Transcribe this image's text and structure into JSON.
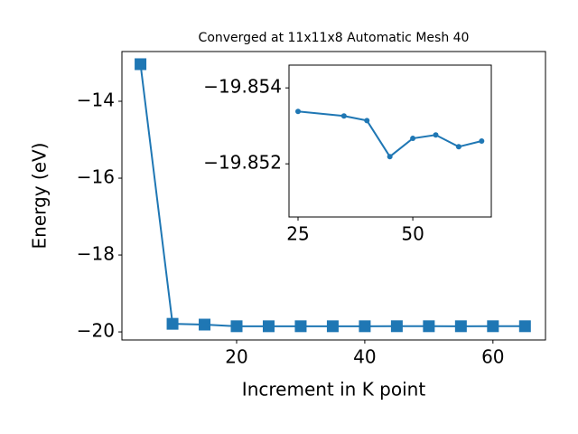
{
  "chart_data": [
    {
      "type": "line",
      "title": "Converged at 11x11x8 Automatic Mesh 40",
      "x_label": "Increment in K point",
      "y_label": "Energy (eV)",
      "marker": "square",
      "series": [
        {
          "color": "#1f77b4",
          "x": [
            5,
            10,
            15,
            20,
            25,
            30,
            35,
            40,
            45,
            50,
            55,
            60,
            65
          ],
          "values": [
            -13.035,
            -19.79,
            -19.81,
            -19.853,
            -19.85338,
            -19.853,
            -19.85326,
            -19.85314,
            -19.85219,
            -19.85267,
            -19.85276,
            -19.85245,
            -19.8526
          ]
        }
      ],
      "xlim": [
        2.1,
        68.2
      ],
      "ylim": [
        -20.21,
        -12.706
      ],
      "xticks": [
        20,
        40,
        60
      ],
      "yticks": [
        {
          "value": -20,
          "label": "−20"
        },
        {
          "value": -18,
          "label": "−18"
        },
        {
          "value": -16,
          "label": "−16"
        },
        {
          "value": -14,
          "label": "−14"
        }
      ]
    },
    {
      "type": "line",
      "marker": "circle",
      "series": [
        {
          "color": "#1f77b4",
          "x": [
            25,
            35,
            40,
            45,
            50,
            55,
            60,
            65
          ],
          "values": [
            -19.85338,
            -19.85326,
            -19.85314,
            -19.85219,
            -19.85267,
            -19.85276,
            -19.85245,
            -19.8526
          ]
        }
      ],
      "xlim": [
        23.03,
        67.1
      ],
      "ylim": [
        -19.8506,
        -19.8546
      ],
      "xticks": [
        25,
        50
      ],
      "yticks": [
        {
          "value": -19.852,
          "label": "−19.852"
        },
        {
          "value": -19.854,
          "label": "−19.854"
        }
      ]
    }
  ]
}
